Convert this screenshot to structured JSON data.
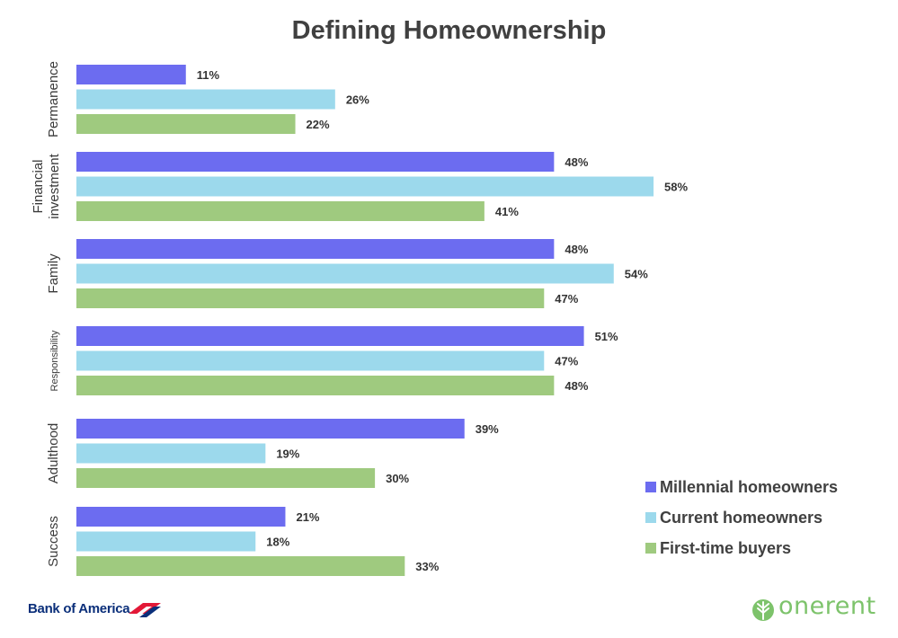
{
  "chart_data": {
    "type": "bar",
    "orientation": "horizontal",
    "title": "Defining Homeownership",
    "categories": [
      "Permanence",
      "Financial investment",
      "Family",
      "Responsibility",
      "Adulthood",
      "Success"
    ],
    "category_lines": [
      [
        "Permanence"
      ],
      [
        "Financial",
        "investment"
      ],
      [
        "Family"
      ],
      [
        "Responsibility"
      ],
      [
        "Adulthood"
      ],
      [
        "Success"
      ]
    ],
    "series": [
      {
        "name": "Millennial homeowners",
        "values": [
          11,
          48,
          48,
          51,
          39,
          21
        ],
        "labels": [
          "11%",
          "48%",
          "48%",
          "51%",
          "39%",
          "21%"
        ],
        "color": "#6c6cf0"
      },
      {
        "name": "Current homeowners",
        "values": [
          26,
          58,
          54,
          47,
          19,
          18
        ],
        "labels": [
          "26%",
          "58%",
          "54%",
          "47%",
          "19%",
          "18%"
        ],
        "color": "#9cd9ec"
      },
      {
        "name": "First-time buyers",
        "values": [
          22,
          41,
          47,
          48,
          30,
          33
        ],
        "labels": [
          "22%",
          "41%",
          "47%",
          "48%",
          "30%",
          "33%"
        ],
        "color": "#9fca7f"
      }
    ],
    "xlim": [
      0,
      58
    ],
    "legend_position": "bottom-right",
    "grid": false
  },
  "logos": {
    "left": "Bank of America",
    "right": "onerent"
  }
}
